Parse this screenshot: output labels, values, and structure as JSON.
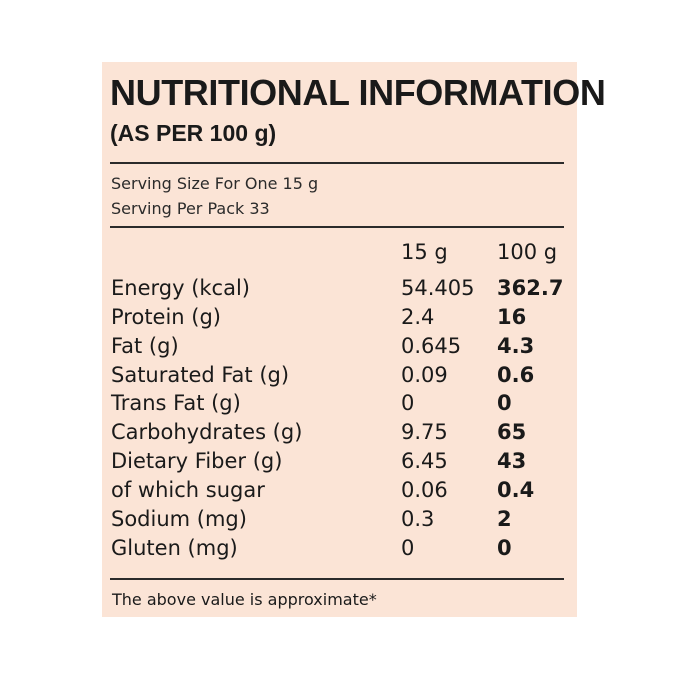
{
  "title": "NUTRITIONAL INFORMATION",
  "subtitle": "(AS PER 100 g)",
  "serving": {
    "size": "Serving Size For One 15 g",
    "per_pack": "Serving Per Pack 33"
  },
  "table": {
    "headers": [
      "",
      "15 g",
      "100 g"
    ],
    "rows": [
      [
        "Energy (kcal)",
        "54.405",
        "362.7"
      ],
      [
        "Protein (g)",
        "2.4",
        "16"
      ],
      [
        "Fat (g)",
        "0.645",
        "4.3"
      ],
      [
        "Saturated Fat (g)",
        "0.09",
        "0.6"
      ],
      [
        "Trans Fat (g)",
        "0",
        "0"
      ],
      [
        "Carbohydrates (g)",
        "9.75",
        "65"
      ],
      [
        "Dietary Fiber (g)",
        "6.45",
        "43"
      ],
      [
        "of which sugar",
        "0.06",
        "0.4"
      ],
      [
        "Sodium (mg)",
        "0.3",
        "2"
      ],
      [
        "Gluten (mg)",
        "0",
        "0"
      ]
    ]
  },
  "footnote": "The above value is approximate*",
  "colors": {
    "panel_background": "#fbe4d6",
    "text": "#1a1a1a"
  }
}
